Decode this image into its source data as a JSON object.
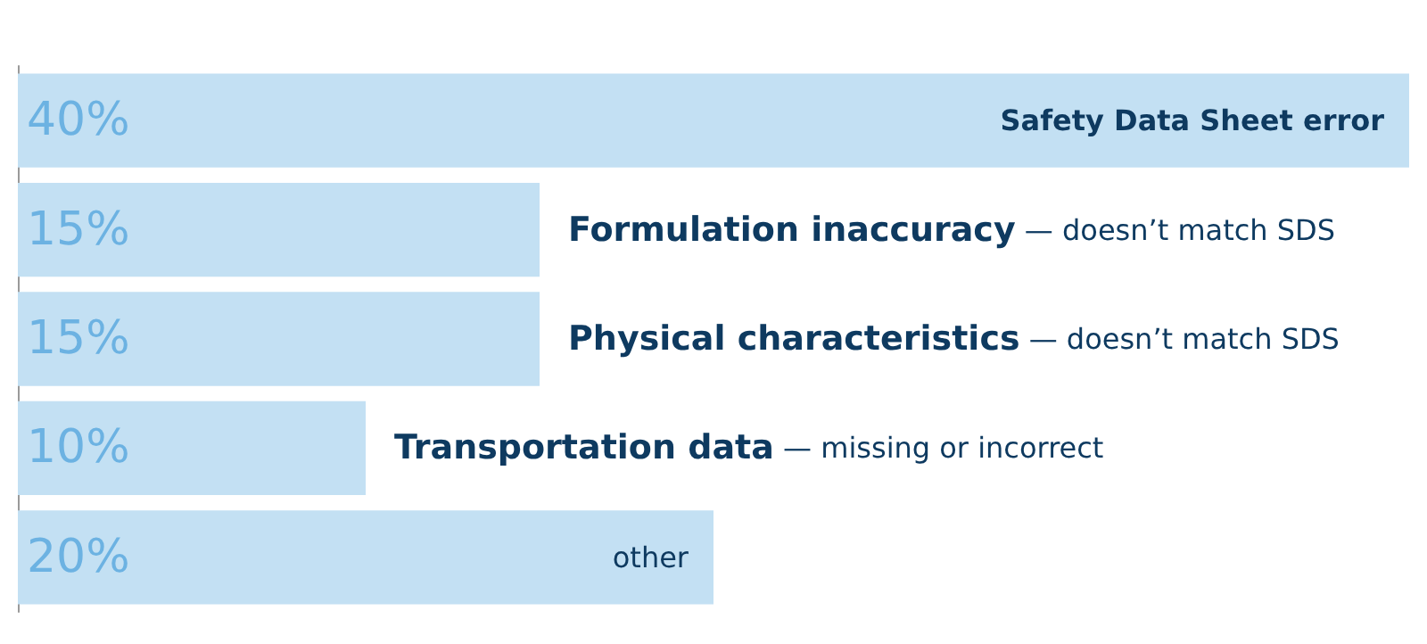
{
  "chart_data": {
    "type": "bar",
    "orientation": "horizontal",
    "categories": [
      "Safety Data Sheet error",
      "Formulation inaccuracy — doesn’t match SDS",
      "Physical characteristics — doesn’t match SDS",
      "Transportation data — missing or incorrect",
      "other"
    ],
    "values": [
      40,
      15,
      15,
      10,
      20
    ],
    "value_labels": [
      "40%",
      "15%",
      "15%",
      "10%",
      "20%"
    ],
    "color": "#c3e0f3"
  }
}
